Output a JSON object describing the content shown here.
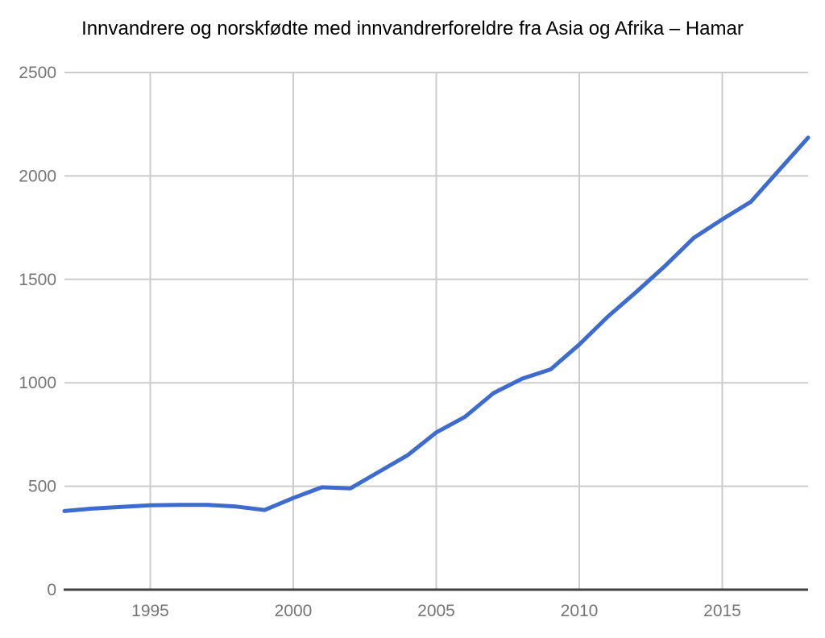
{
  "chart_data": {
    "type": "line",
    "title": "Innvandrere og norskfødte med innvandrerforeldre fra Asia og Afrika – Hamar",
    "x": [
      1992,
      1993,
      1994,
      1995,
      1996,
      1997,
      1998,
      1999,
      2000,
      2001,
      2002,
      2003,
      2004,
      2005,
      2006,
      2007,
      2008,
      2009,
      2010,
      2011,
      2012,
      2013,
      2014,
      2015,
      2016,
      2017,
      2018
    ],
    "values": [
      380,
      392,
      400,
      408,
      410,
      410,
      402,
      385,
      443,
      495,
      490,
      570,
      650,
      760,
      835,
      950,
      1020,
      1065,
      1185,
      1320,
      1440,
      1565,
      1700,
      1790,
      1875,
      2030,
      2185
    ],
    "xlabel": "",
    "ylabel": "",
    "xlim": [
      1992,
      2018
    ],
    "ylim": [
      0,
      2500
    ],
    "xticks": [
      1995,
      2000,
      2005,
      2010,
      2015
    ],
    "yticks": [
      0,
      500,
      1000,
      1500,
      2000,
      2500
    ],
    "grid": true,
    "legend": "none",
    "colors": {
      "line": "#3d6bce",
      "gridline": "#cccccc",
      "axis": "#424242",
      "tick_label": "#757575",
      "title": "#000000",
      "background": "#ffffff"
    }
  }
}
